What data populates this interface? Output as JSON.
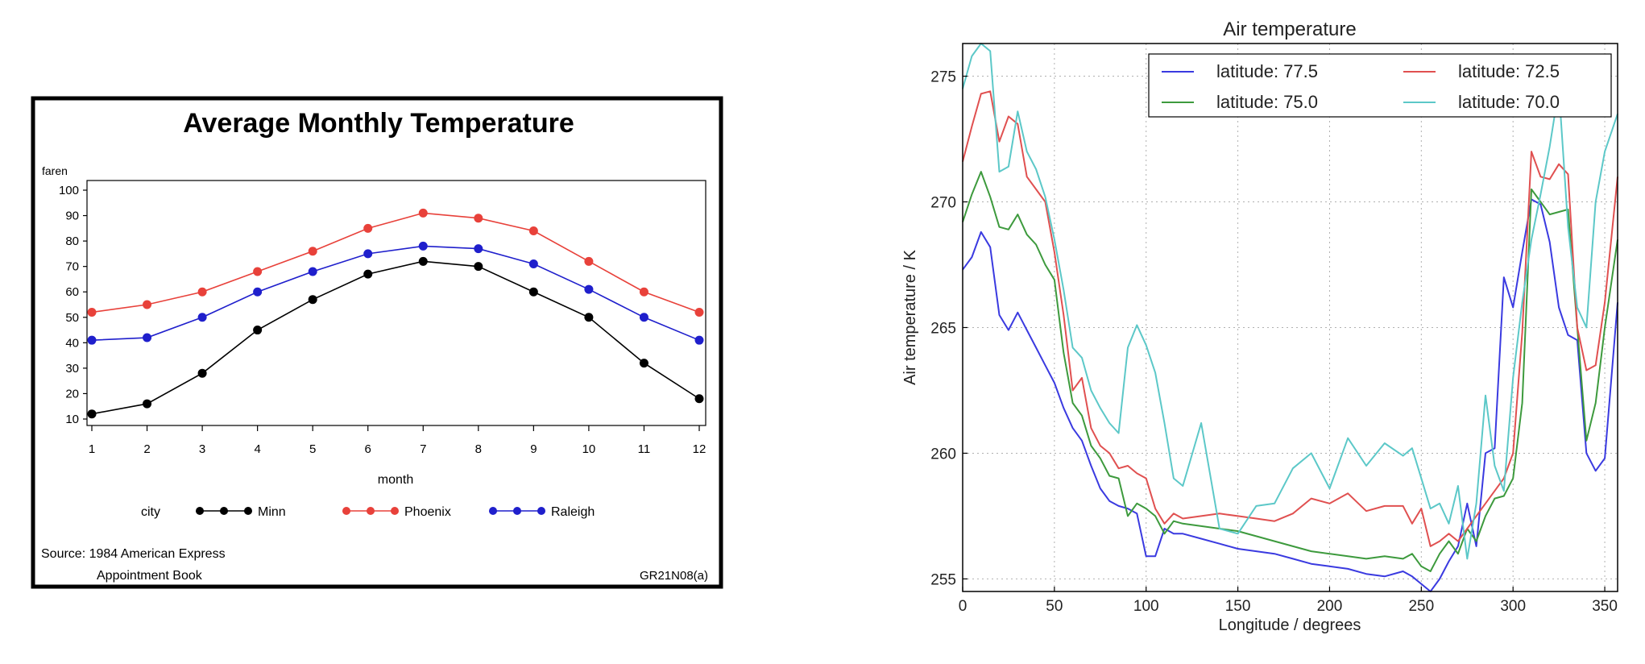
{
  "chart_data": [
    {
      "type": "line",
      "title": "Average Monthly Temperature",
      "ylabel": "faren",
      "xlabel": "month",
      "ylim": [
        10,
        100
      ],
      "yticks": [
        10,
        20,
        30,
        40,
        50,
        60,
        70,
        80,
        90,
        100
      ],
      "x": [
        1,
        2,
        3,
        4,
        5,
        6,
        7,
        8,
        9,
        10,
        11,
        12
      ],
      "legend_title": "city",
      "legend_position": "bottom",
      "grid": false,
      "series": [
        {
          "name": "Minn",
          "color": "#000000",
          "values": [
            12,
            16,
            28,
            45,
            57,
            67,
            72,
            70,
            60,
            50,
            32,
            18
          ]
        },
        {
          "name": "Phoenix",
          "color": "#e8413a",
          "values": [
            52,
            55,
            60,
            68,
            76,
            85,
            91,
            89,
            84,
            72,
            60,
            52
          ]
        },
        {
          "name": "Raleigh",
          "color": "#1f1fcc",
          "values": [
            41,
            42,
            50,
            60,
            68,
            75,
            78,
            77,
            71,
            61,
            50,
            41
          ]
        }
      ],
      "source_line1": "Source: 1984 American Express",
      "source_line2": "Appointment Book",
      "figure_id": "GR21N08(a)"
    },
    {
      "type": "line",
      "title": "Air temperature",
      "xlabel": "Longitude / degrees",
      "ylabel": "Air temperature / K",
      "xlim": [
        0,
        357
      ],
      "ylim": [
        254.5,
        276.3
      ],
      "xticks": [
        0,
        50,
        100,
        150,
        200,
        250,
        300,
        350
      ],
      "yticks": [
        255,
        260,
        265,
        270,
        275
      ],
      "grid": true,
      "legend_position": "top-right",
      "series": [
        {
          "name": "latitude: 77.5",
          "color": "#3a3ae0",
          "x": [
            0,
            5,
            10,
            15,
            20,
            25,
            30,
            35,
            40,
            45,
            50,
            55,
            60,
            65,
            70,
            75,
            80,
            85,
            90,
            95,
            100,
            105,
            110,
            115,
            120,
            130,
            140,
            150,
            160,
            170,
            180,
            190,
            200,
            210,
            220,
            230,
            240,
            245,
            250,
            255,
            260,
            265,
            270,
            275,
            280,
            285,
            290,
            295,
            300,
            305,
            310,
            315,
            320,
            325,
            330,
            335,
            340,
            345,
            350,
            357
          ],
          "y": [
            267.3,
            267.8,
            268.8,
            268.2,
            265.5,
            264.9,
            265.6,
            264.9,
            264.2,
            263.5,
            262.8,
            261.8,
            261.0,
            260.5,
            259.5,
            258.6,
            258.1,
            257.9,
            257.8,
            257.6,
            255.9,
            255.9,
            257.0,
            256.8,
            256.8,
            256.6,
            256.4,
            256.2,
            256.1,
            256.0,
            255.8,
            255.6,
            255.5,
            255.4,
            255.2,
            255.1,
            255.3,
            255.1,
            254.8,
            254.5,
            255.0,
            255.7,
            256.3,
            258.0,
            256.3,
            260.0,
            260.2,
            267.0,
            265.8,
            268.0,
            270.1,
            269.9,
            268.4,
            265.8,
            264.7,
            264.5,
            260.0,
            259.3,
            259.8,
            266.0
          ]
        },
        {
          "name": "latitude: 75.0",
          "color": "#3d9a3d",
          "x": [
            0,
            5,
            10,
            15,
            20,
            25,
            30,
            35,
            40,
            45,
            50,
            55,
            60,
            65,
            70,
            75,
            80,
            85,
            90,
            95,
            100,
            105,
            110,
            115,
            120,
            130,
            140,
            150,
            160,
            170,
            180,
            190,
            200,
            210,
            220,
            230,
            240,
            245,
            250,
            255,
            260,
            265,
            270,
            275,
            280,
            285,
            290,
            295,
            300,
            305,
            310,
            315,
            320,
            325,
            330,
            335,
            340,
            345,
            350,
            357
          ],
          "y": [
            269.2,
            270.3,
            271.2,
            270.2,
            269.0,
            268.9,
            269.5,
            268.7,
            268.3,
            267.5,
            266.9,
            264.0,
            262.0,
            261.5,
            260.3,
            259.8,
            259.1,
            259.0,
            257.5,
            258.0,
            257.8,
            257.5,
            256.8,
            257.3,
            257.2,
            257.1,
            257.0,
            256.9,
            256.7,
            256.5,
            256.3,
            256.1,
            256.0,
            255.9,
            255.8,
            255.9,
            255.8,
            256.0,
            255.5,
            255.3,
            256.0,
            256.5,
            256.0,
            257.0,
            256.5,
            257.5,
            258.2,
            258.3,
            259.0,
            262.0,
            270.5,
            270.0,
            269.5,
            269.6,
            269.7,
            265.0,
            260.5,
            262.0,
            265.0,
            268.5
          ]
        },
        {
          "name": "latitude: 72.5",
          "color": "#e05050",
          "x": [
            0,
            5,
            10,
            15,
            20,
            25,
            30,
            35,
            40,
            45,
            50,
            55,
            60,
            65,
            70,
            75,
            80,
            85,
            90,
            95,
            100,
            105,
            110,
            115,
            120,
            130,
            140,
            150,
            160,
            170,
            180,
            190,
            200,
            210,
            220,
            230,
            240,
            245,
            250,
            255,
            260,
            265,
            270,
            275,
            280,
            285,
            290,
            295,
            300,
            305,
            310,
            315,
            320,
            325,
            330,
            335,
            340,
            345,
            350,
            357
          ],
          "y": [
            271.6,
            273.0,
            274.3,
            274.4,
            272.4,
            273.4,
            273.1,
            271.0,
            270.5,
            270.0,
            268.0,
            265.5,
            262.5,
            263.0,
            261.0,
            260.3,
            260.0,
            259.4,
            259.5,
            259.2,
            259.0,
            257.8,
            257.2,
            257.6,
            257.4,
            257.5,
            257.6,
            257.5,
            257.4,
            257.3,
            257.6,
            258.2,
            258.0,
            258.4,
            257.7,
            257.9,
            257.9,
            257.2,
            257.8,
            256.3,
            256.5,
            256.8,
            256.5,
            257.0,
            257.5,
            258.0,
            258.5,
            259.0,
            260.0,
            264.8,
            272.0,
            271.0,
            270.9,
            271.5,
            271.1,
            265.0,
            263.3,
            263.5,
            266.0,
            271.0
          ]
        },
        {
          "name": "latitude: 70.0",
          "color": "#5cc8c8",
          "x": [
            0,
            5,
            10,
            15,
            20,
            25,
            30,
            35,
            40,
            45,
            50,
            55,
            60,
            65,
            70,
            75,
            80,
            85,
            90,
            95,
            100,
            105,
            110,
            115,
            120,
            130,
            140,
            150,
            160,
            170,
            180,
            190,
            200,
            210,
            220,
            230,
            240,
            245,
            250,
            255,
            260,
            265,
            270,
            275,
            280,
            285,
            290,
            295,
            300,
            305,
            310,
            315,
            320,
            325,
            330,
            335,
            340,
            345,
            350,
            357
          ],
          "y": [
            274.5,
            275.8,
            276.3,
            276.0,
            271.2,
            271.4,
            273.6,
            272.0,
            271.3,
            270.2,
            268.5,
            266.5,
            264.2,
            263.8,
            262.5,
            261.8,
            261.2,
            260.8,
            264.2,
            265.1,
            264.3,
            263.2,
            261.2,
            259.0,
            258.7,
            261.2,
            257.0,
            256.8,
            257.9,
            258.0,
            259.4,
            260.0,
            258.6,
            260.6,
            259.5,
            260.4,
            259.9,
            260.2,
            259.0,
            257.8,
            258.0,
            257.2,
            258.7,
            255.8,
            258.0,
            262.3,
            259.5,
            258.5,
            263.0,
            266.0,
            268.5,
            270.3,
            272.2,
            274.5,
            269.0,
            265.8,
            265.0,
            270.0,
            272.0,
            273.5
          ]
        }
      ]
    }
  ]
}
